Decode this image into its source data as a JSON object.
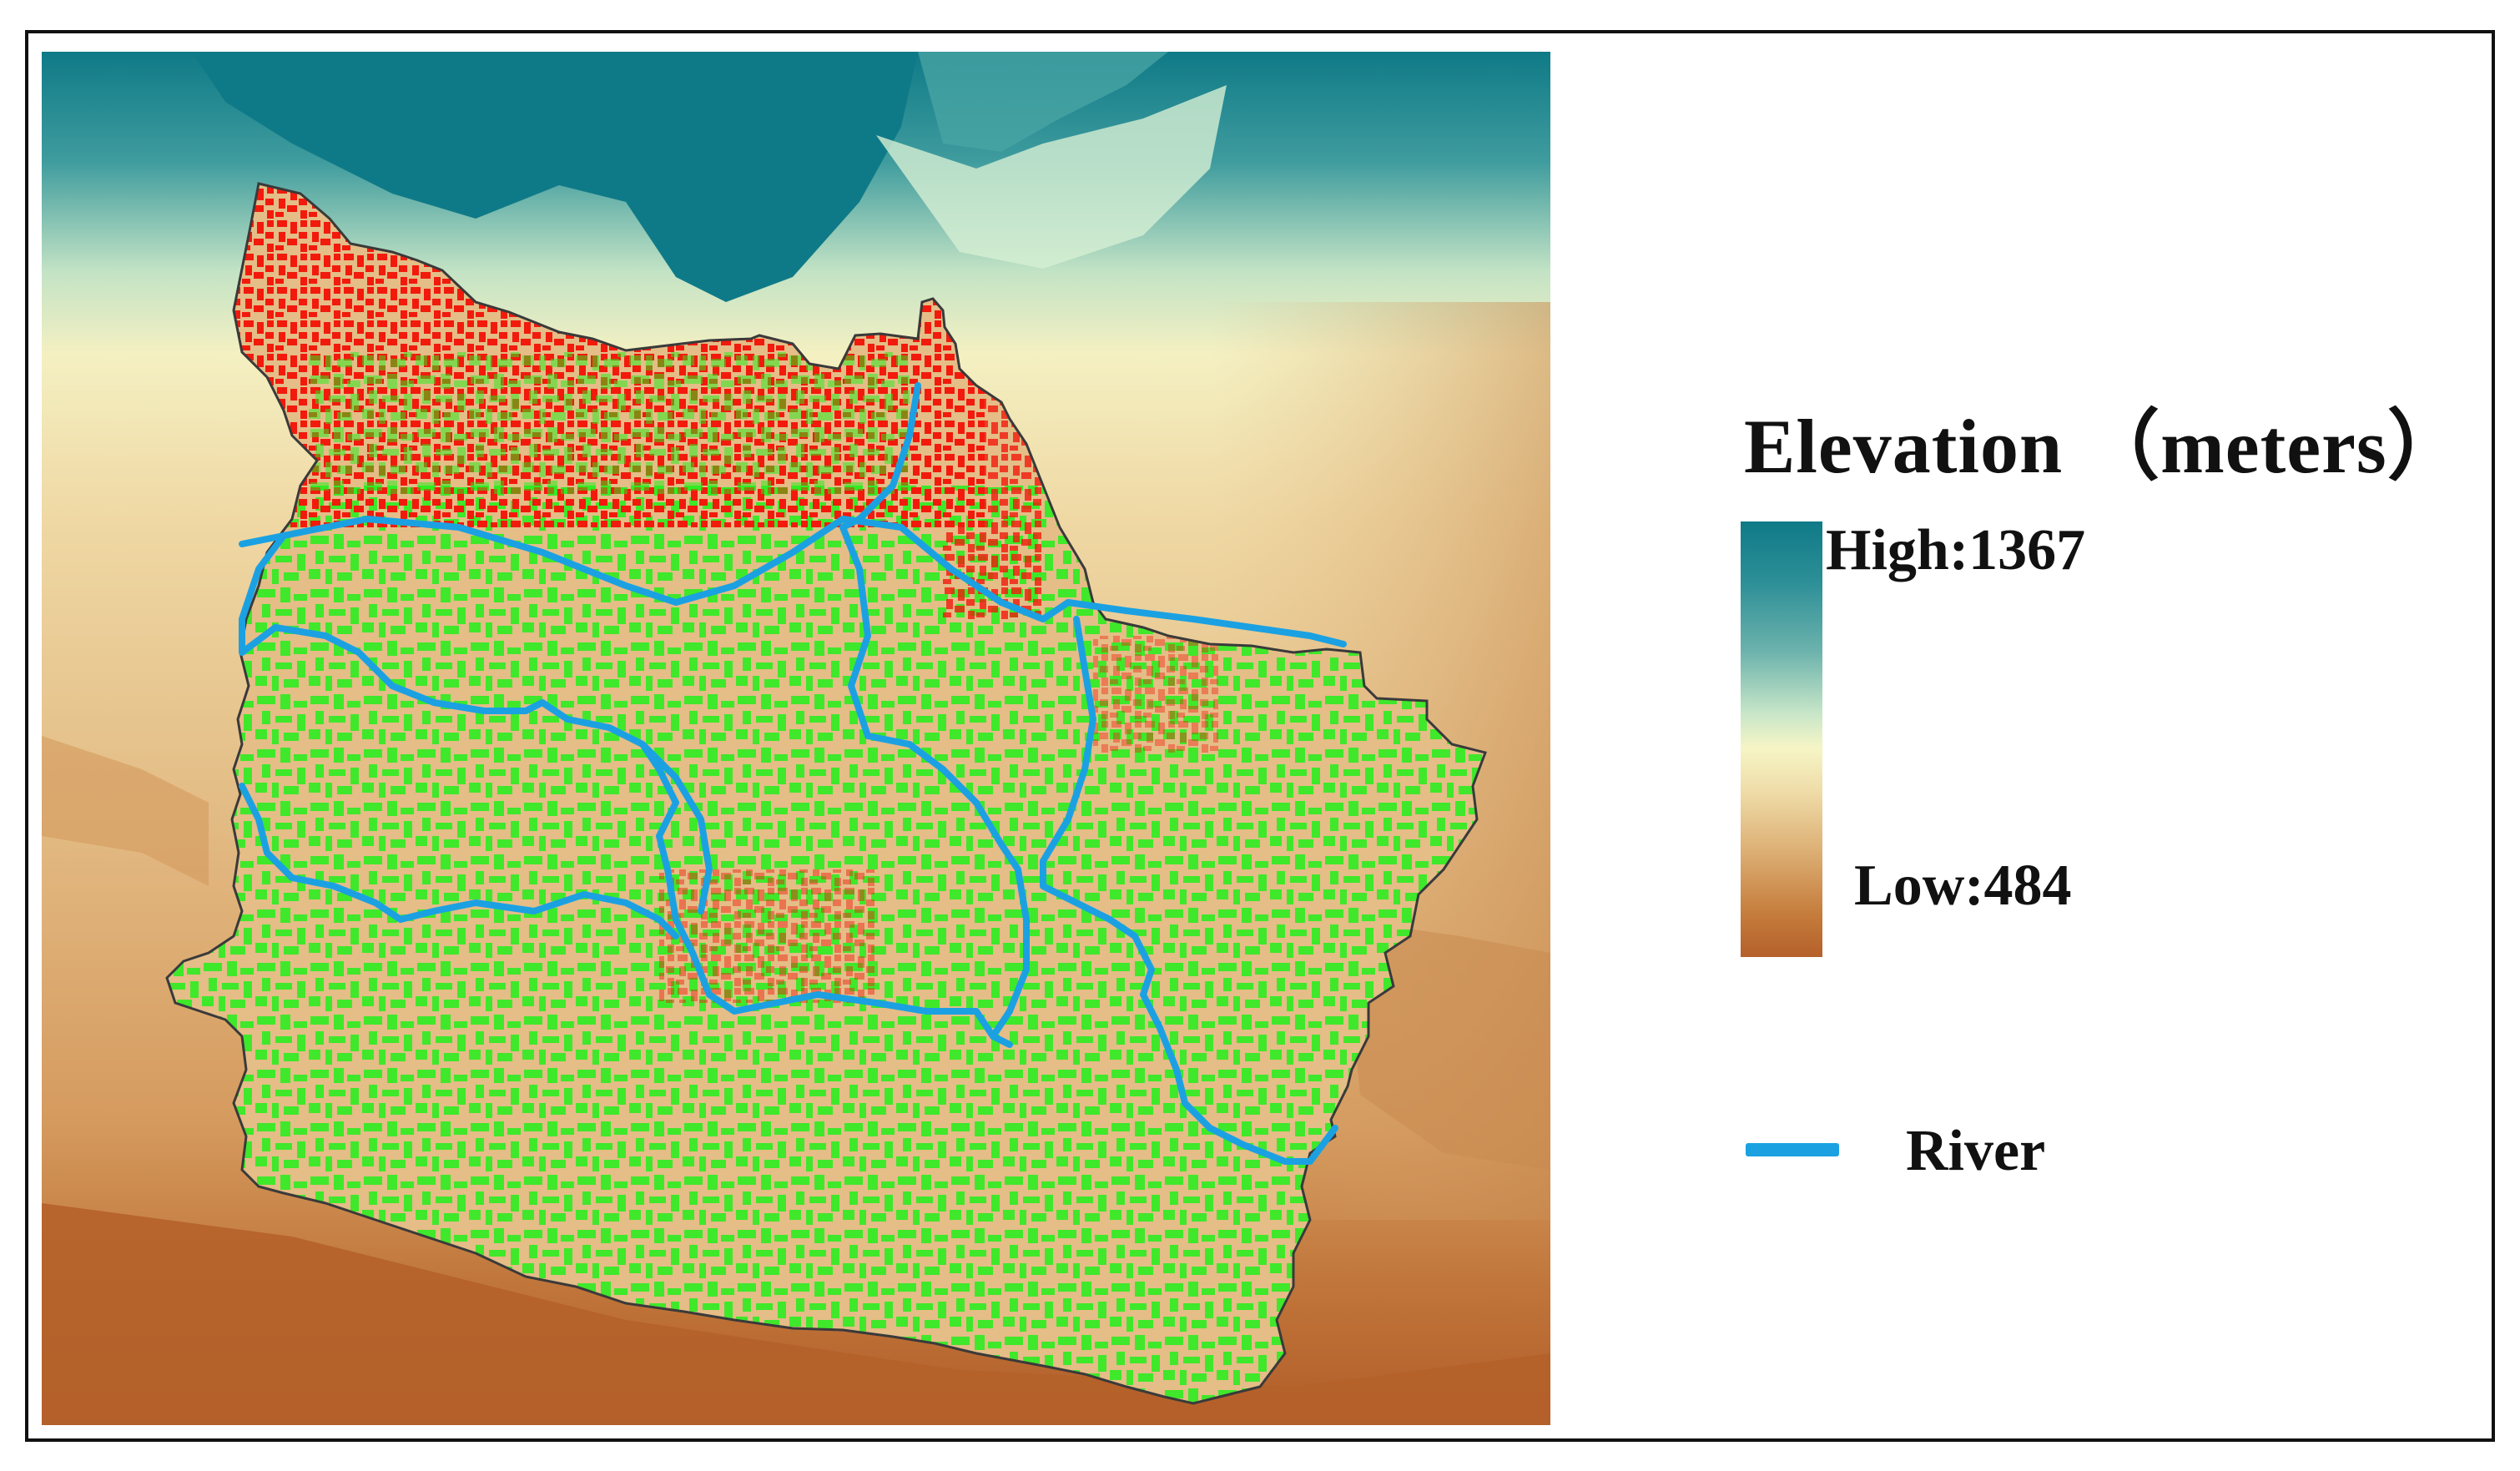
{
  "map": {
    "layers": [
      "elevation-dem",
      "county-boundary",
      "green-patches",
      "red-patches",
      "rivers"
    ],
    "colors": {
      "elevation_high": "#0f7a87",
      "elevation_mid": "#f6f5c6",
      "elevation_low": "#b5602a",
      "boundary": "#3a3a3a",
      "green_patch": "#22f01a",
      "red_patch": "#f21a0c",
      "river": "#1ba1e2"
    }
  },
  "legend": {
    "title": "Elevation （meters）",
    "high_label": "High:1367",
    "low_label": "Low:484",
    "elevation_high": 1367,
    "elevation_low": 484,
    "river_label": "River"
  }
}
